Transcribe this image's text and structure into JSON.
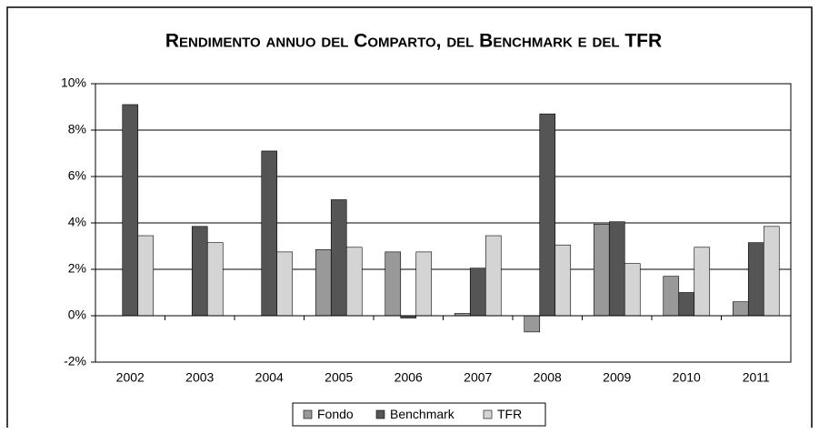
{
  "chart_data": {
    "type": "bar",
    "title": "Rendimento annuo del Comparto, del Benchmark e del TFR",
    "categories": [
      "2002",
      "2003",
      "2004",
      "2005",
      "2006",
      "2007",
      "2008",
      "2009",
      "2010",
      "2011"
    ],
    "series": [
      {
        "name": "Fondo",
        "color": "#999999",
        "values": [
          null,
          null,
          null,
          2.85,
          2.75,
          0.1,
          -0.7,
          3.95,
          1.7,
          0.6
        ]
      },
      {
        "name": "Benchmark",
        "color": "#555555",
        "values": [
          9.1,
          3.85,
          7.1,
          5.0,
          -0.1,
          2.05,
          8.7,
          4.05,
          1.0,
          3.15
        ]
      },
      {
        "name": "TFR",
        "color": "#d4d4d4",
        "values": [
          3.45,
          3.15,
          2.75,
          2.95,
          2.75,
          3.45,
          3.05,
          2.25,
          2.95,
          3.85
        ]
      }
    ],
    "ylim": [
      -2,
      10
    ],
    "yticks": [
      {
        "value": -2,
        "label": "-2%"
      },
      {
        "value": 0,
        "label": "0%"
      },
      {
        "value": 2,
        "label": "2%"
      },
      {
        "value": 4,
        "label": "4%"
      },
      {
        "value": 6,
        "label": "6%"
      },
      {
        "value": 8,
        "label": "8%"
      },
      {
        "value": 10,
        "label": "10%"
      }
    ],
    "grid": true,
    "legend": "bottom"
  }
}
